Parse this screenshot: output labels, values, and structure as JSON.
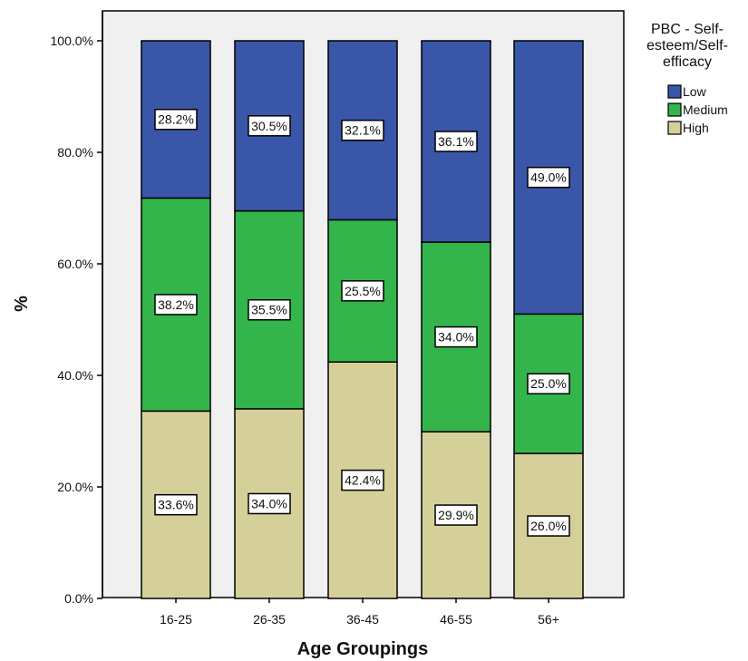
{
  "chart_data": {
    "type": "bar",
    "stacked": true,
    "categories": [
      "16-25",
      "26-35",
      "36-45",
      "46-55",
      "56+"
    ],
    "series": [
      {
        "name": "High",
        "values": [
          33.6,
          34.0,
          42.4,
          29.9,
          26.0
        ],
        "color": "#d5d09a"
      },
      {
        "name": "Medium",
        "values": [
          38.2,
          35.5,
          25.5,
          34.0,
          25.0
        ],
        "color": "#33b54c"
      },
      {
        "name": "Low",
        "values": [
          28.2,
          30.5,
          32.1,
          36.1,
          49.0
        ],
        "color": "#3a56a8"
      }
    ],
    "data_labels": [
      [
        "33.6%",
        "34.0%",
        "42.4%",
        "29.9%",
        "26.0%"
      ],
      [
        "38.2%",
        "35.5%",
        "25.5%",
        "34.0%",
        "25.0%"
      ],
      [
        "28.2%",
        "30.5%",
        "32.1%",
        "36.1%",
        "49.0%"
      ]
    ],
    "xlabel": "Age Groupings",
    "ylabel": "%",
    "ylim": [
      0,
      100
    ],
    "yticks": [
      "0.0%",
      "20.0%",
      "40.0%",
      "60.0%",
      "80.0%",
      "100.0%"
    ],
    "ytick_values": [
      0,
      20,
      40,
      60,
      80,
      100
    ],
    "legend": {
      "title_lines": [
        "PBC - Self-",
        "esteem/Self-",
        "efficacy"
      ],
      "entries": [
        "Low",
        "Medium",
        "High"
      ],
      "placement": "right"
    },
    "plot_background": "#f0f0f0",
    "grid": false
  }
}
